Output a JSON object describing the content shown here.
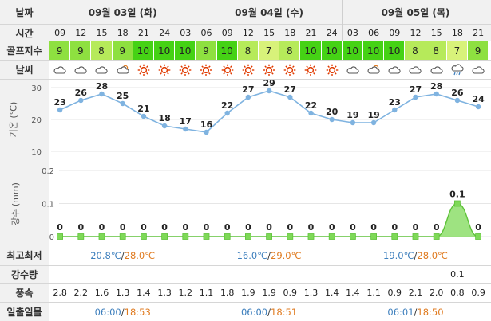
{
  "labels": {
    "date": "날짜",
    "time": "시간",
    "golf_index": "골프지수",
    "weather": "날씨",
    "temp_axis": "기온 (℃)",
    "precip_axis": "강수 (mm)",
    "minmax": "최고최저",
    "precip_amount": "강수량",
    "wind": "풍속",
    "sun": "일출일몰"
  },
  "days": [
    {
      "label": "09월 03일 (화)",
      "min": "20.8℃",
      "max": "28.0℃",
      "sunrise": "06:00",
      "sunset": "18:53",
      "separator": "/"
    },
    {
      "label": "09월 04일 (수)",
      "min": "16.0℃",
      "max": "29.0℃",
      "sunrise": "06:00",
      "sunset": "18:51",
      "separator": "/"
    },
    {
      "label": "09월 05일 (목)",
      "min": "19.0℃",
      "max": "28.0℃",
      "sunrise": "06:01",
      "sunset": "18:50",
      "separator": "/"
    }
  ],
  "times": [
    "09",
    "12",
    "15",
    "18",
    "21",
    "24",
    "03",
    "06",
    "09",
    "12",
    "15",
    "18",
    "21",
    "24",
    "03",
    "06",
    "09",
    "12",
    "15",
    "18",
    "21"
  ],
  "golf_index": [
    "9",
    "9",
    "8",
    "9",
    "10",
    "10",
    "10",
    "9",
    "10",
    "8",
    "7",
    "8",
    "10",
    "10",
    "10",
    "10",
    "10",
    "8",
    "8",
    "7",
    "9"
  ],
  "golf_colors": {
    "7": "#d8f27a",
    "8": "#b6ea5a",
    "9": "#8ee040",
    "10": "#45d215"
  },
  "weather_icons": [
    "cloud-icon",
    "cloud-icon",
    "cloud-icon",
    "sun-cloud-icon",
    "sun-icon",
    "sun-icon",
    "sun-icon",
    "sun-icon",
    "sun-icon",
    "sun-icon",
    "sun-icon",
    "sun-icon",
    "sun-icon",
    "sun-icon",
    "cloud-icon",
    "sun-cloud-icon",
    "cloud-icon",
    "cloud-icon",
    "cloud-icon",
    "rain-icon",
    "cloud-icon"
  ],
  "wind": [
    "2.8",
    "2.2",
    "1.6",
    "1.3",
    "1.4",
    "1.3",
    "1.2",
    "1.1",
    "1.8",
    "1.9",
    "1.9",
    "0.9",
    "1.3",
    "1.4",
    "1.4",
    "1.1",
    "0.9",
    "2.1",
    "2.0",
    "0.8",
    "0.9"
  ],
  "precip_amount": [
    "",
    "",
    "",
    "",
    "",
    "",
    "",
    "",
    "",
    "",
    "",
    "",
    "",
    "",
    "",
    "",
    "",
    "",
    "",
    "0.1",
    ""
  ],
  "chart_data": [
    {
      "type": "line",
      "x": [
        "09",
        "12",
        "15",
        "18",
        "21",
        "24",
        "03",
        "06",
        "09",
        "12",
        "15",
        "18",
        "21",
        "24",
        "03",
        "06",
        "09",
        "12",
        "15",
        "18",
        "21"
      ],
      "values": [
        23,
        26,
        28,
        25,
        21,
        18,
        17,
        16,
        22,
        27,
        29,
        27,
        22,
        20,
        19,
        19,
        23,
        27,
        28,
        26,
        24
      ],
      "ylabel": "기온 (℃)",
      "yticks": [
        10,
        20,
        30
      ],
      "ylim": [
        10,
        30
      ],
      "color": "#7fb3e0"
    },
    {
      "type": "area",
      "x": [
        "09",
        "12",
        "15",
        "18",
        "21",
        "24",
        "03",
        "06",
        "09",
        "12",
        "15",
        "18",
        "21",
        "24",
        "03",
        "06",
        "09",
        "12",
        "15",
        "18",
        "21"
      ],
      "values": [
        0,
        0,
        0,
        0,
        0,
        0,
        0,
        0,
        0,
        0,
        0,
        0,
        0,
        0,
        0,
        0,
        0,
        0,
        0,
        0.1,
        0
      ],
      "ylabel": "강수 (mm)",
      "yticks": [
        0,
        0.1,
        0.2
      ],
      "ylim": [
        0,
        0.2
      ],
      "color": "#7ed957"
    }
  ]
}
